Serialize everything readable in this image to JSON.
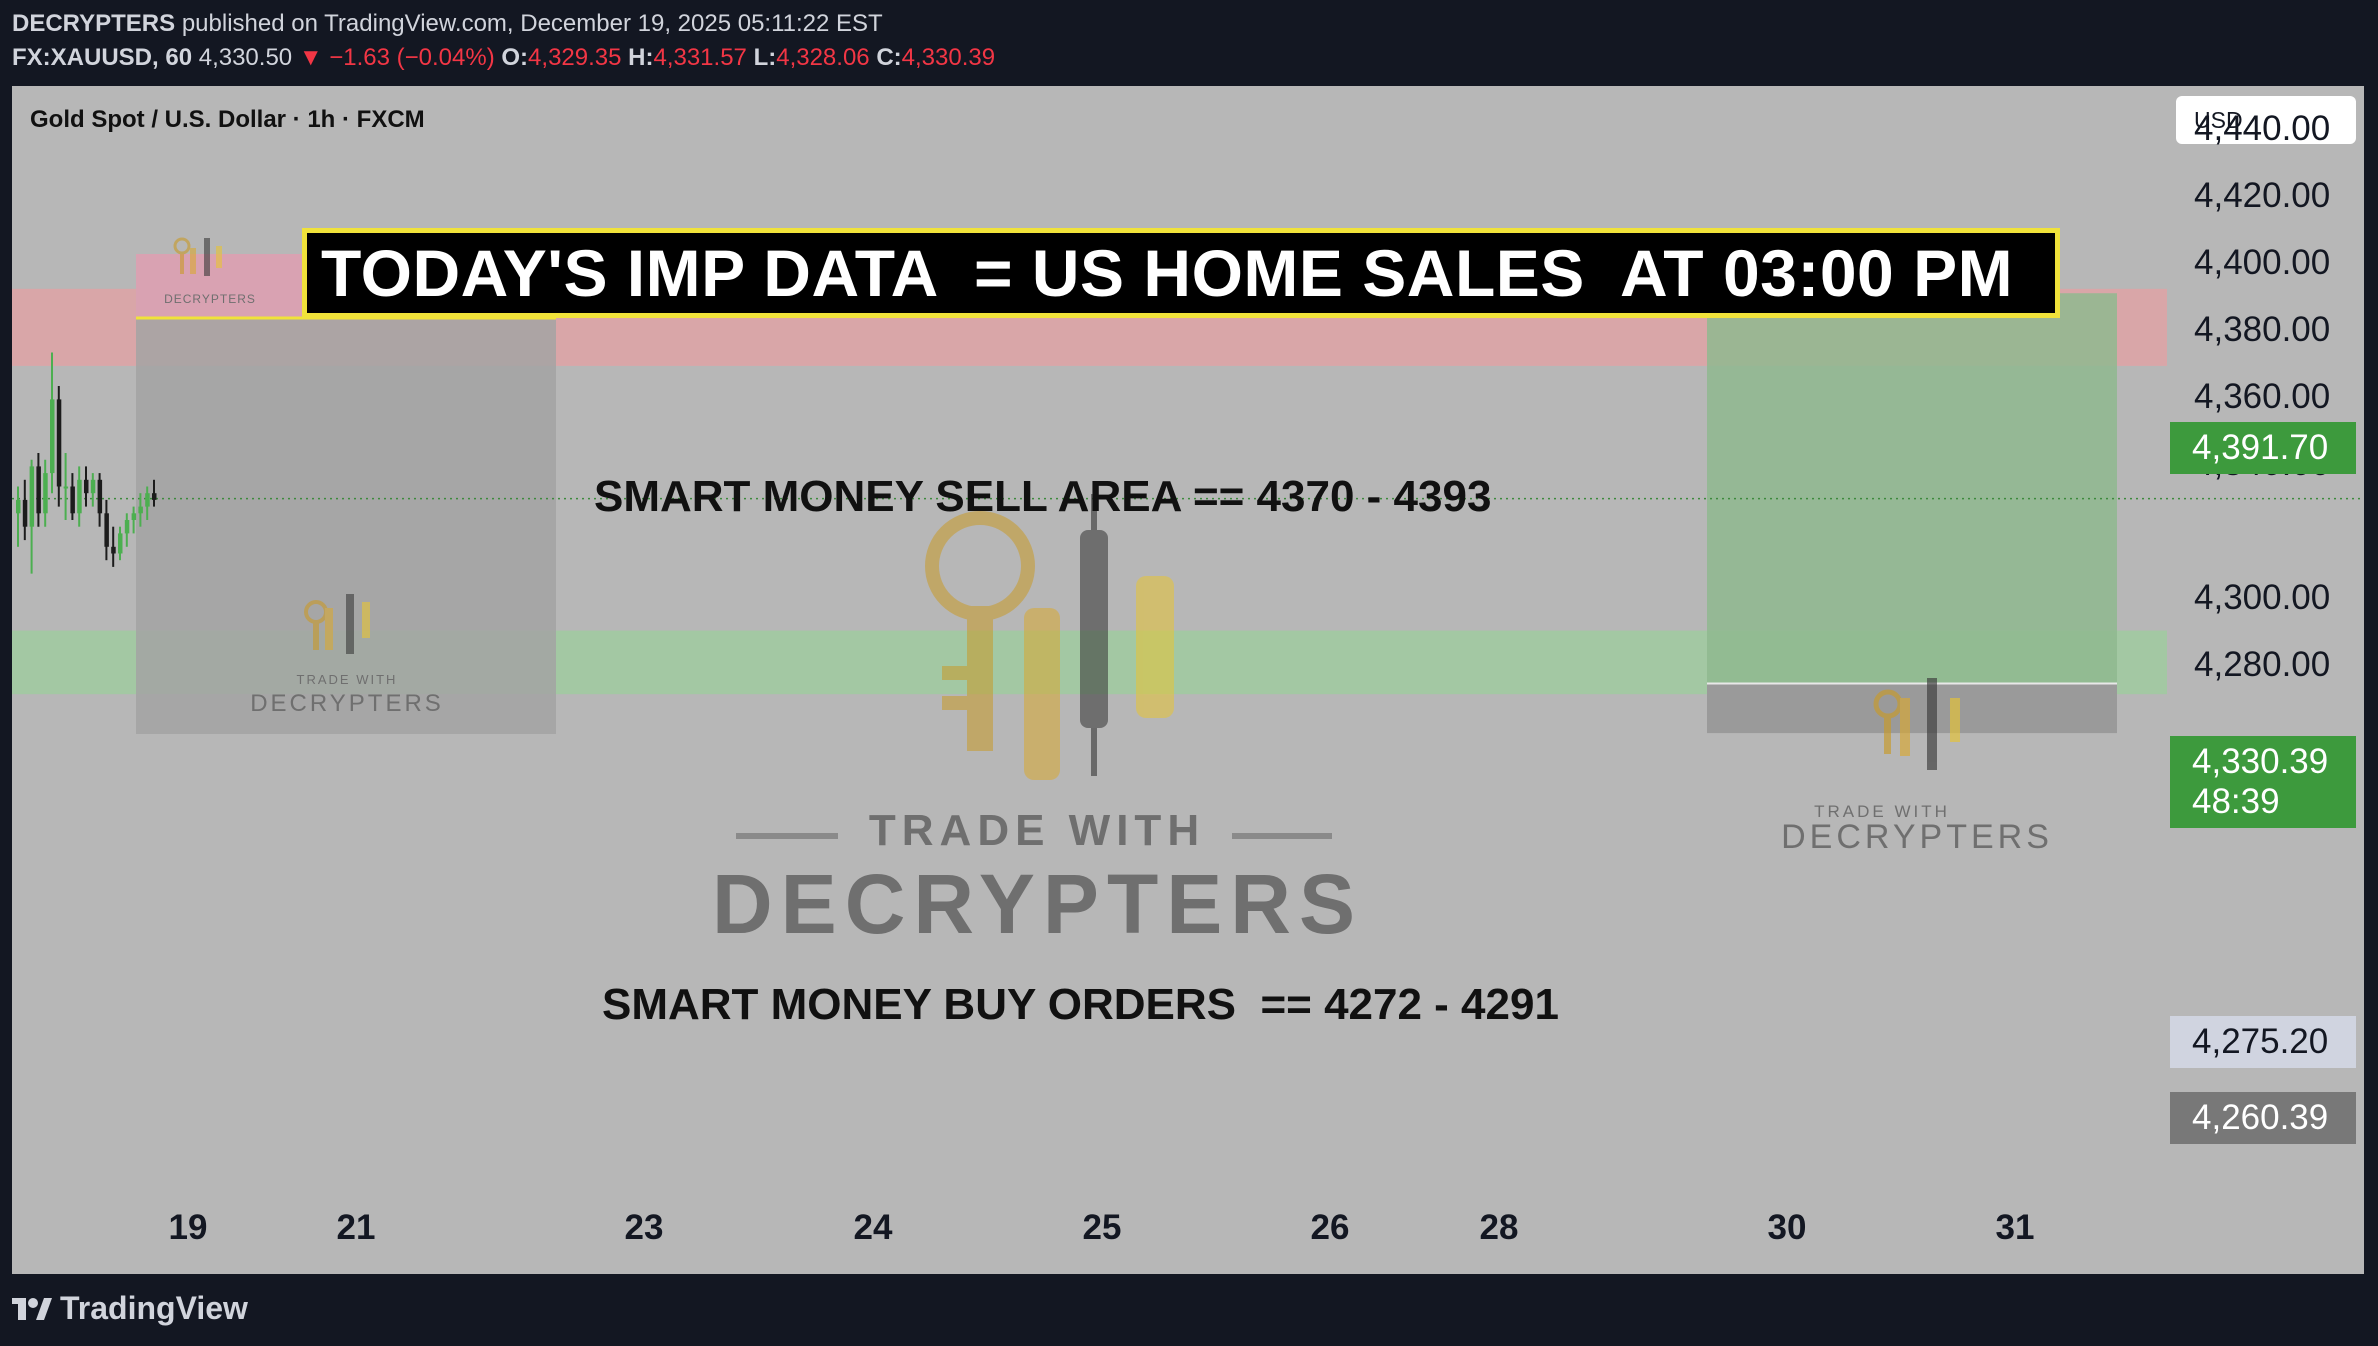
{
  "header": {
    "publisher": "DECRYPTERS",
    "published_text": "published on TradingView.com, December 19, 2025 05:11:22 EST",
    "symbol": "FX:XAUUSD, 60",
    "last": "4,330.50",
    "change_arrow": "▼",
    "change": "−1.63 (−0.04%)",
    "o_label": "O:",
    "o": "4,329.35",
    "h_label": "H:",
    "h": "4,331.57",
    "l_label": "L:",
    "l": "4,328.06",
    "c_label": "C:",
    "c": "4,330.39"
  },
  "chart_header": {
    "title": "Gold Spot / U.S. Dollar · 1h · FXCM",
    "currency": "USD"
  },
  "banner": "TODAY'S IMP DATA  = US HOME SALES  AT 03:00 PM",
  "zones": {
    "sell_label": "SMART MONEY SELL AREA == 4370 - 4393",
    "buy_label": "SMART MONEY BUY ORDERS  == 4272 - 4291"
  },
  "price_tags": {
    "target": "4,391.70",
    "current": "4,330.39",
    "countdown": "48:39",
    "entry": "4,275.20",
    "stop": "4,260.39"
  },
  "watermark": {
    "line1": "TRADE WITH",
    "line2": "DECRYPTERS"
  },
  "footer": {
    "brand": "TradingView"
  },
  "colors": {
    "background": "#131722",
    "chart_bg": "#b7b7b7",
    "up": "#4caf50",
    "down": "#1c1c1c",
    "sell_zone": "#d9a6a8",
    "buy_zone": "#a3c8a3",
    "target_tag": "#3d9a3d",
    "entry_tag": "#d0d4e0",
    "stop_tag": "#787878",
    "banner_border": "#f0e23a"
  },
  "chart_data": {
    "type": "candlestick",
    "y_ticks": [
      "4,440.00",
      "4,420.00",
      "4,400.00",
      "4,380.00",
      "4,360.00",
      "4,340.00",
      "4,300.00",
      "4,280.00"
    ],
    "x_ticks": [
      "19",
      "21",
      "23",
      "24",
      "25",
      "26",
      "28",
      "30",
      "31"
    ],
    "ylim": [
      4245,
      4450
    ],
    "current_price": 4330.39,
    "sell_zone": [
      4370,
      4393
    ],
    "buy_zone": [
      4272,
      4291
    ],
    "position": {
      "target": 4391.7,
      "entry": 4275.2,
      "stop": 4260.39
    },
    "candles": [
      {
        "o": 4326,
        "h": 4334,
        "l": 4316,
        "c": 4330
      },
      {
        "o": 4330,
        "h": 4336,
        "l": 4318,
        "c": 4322
      },
      {
        "o": 4322,
        "h": 4342,
        "l": 4308,
        "c": 4340
      },
      {
        "o": 4340,
        "h": 4344,
        "l": 4322,
        "c": 4326
      },
      {
        "o": 4326,
        "h": 4342,
        "l": 4322,
        "c": 4338
      },
      {
        "o": 4338,
        "h": 4374,
        "l": 4332,
        "c": 4360
      },
      {
        "o": 4360,
        "h": 4364,
        "l": 4328,
        "c": 4334
      },
      {
        "o": 4334,
        "h": 4344,
        "l": 4324,
        "c": 4334
      },
      {
        "o": 4334,
        "h": 4338,
        "l": 4324,
        "c": 4326
      },
      {
        "o": 4326,
        "h": 4340,
        "l": 4322,
        "c": 4336
      },
      {
        "o": 4336,
        "h": 4340,
        "l": 4328,
        "c": 4332
      },
      {
        "o": 4332,
        "h": 4338,
        "l": 4328,
        "c": 4336
      },
      {
        "o": 4336,
        "h": 4338,
        "l": 4322,
        "c": 4326
      },
      {
        "o": 4326,
        "h": 4330,
        "l": 4312,
        "c": 4316
      },
      {
        "o": 4316,
        "h": 4322,
        "l": 4310,
        "c": 4314
      },
      {
        "o": 4314,
        "h": 4322,
        "l": 4312,
        "c": 4320
      },
      {
        "o": 4320,
        "h": 4326,
        "l": 4316,
        "c": 4324
      },
      {
        "o": 4324,
        "h": 4328,
        "l": 4320,
        "c": 4326
      },
      {
        "o": 4326,
        "h": 4332,
        "l": 4322,
        "c": 4328
      },
      {
        "o": 4328,
        "h": 4334,
        "l": 4324,
        "c": 4332
      },
      {
        "o": 4332,
        "h": 4336,
        "l": 4328,
        "c": 4330
      }
    ]
  }
}
